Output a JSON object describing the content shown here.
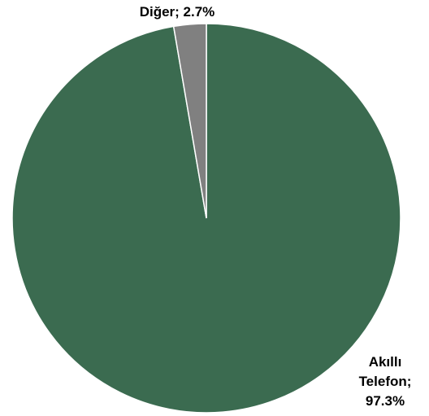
{
  "chart_data": {
    "type": "pie",
    "start_angle": "12 o'clock",
    "direction": "clockwise",
    "slices": [
      {
        "label": "Akıllı Telefon",
        "value": 97.3,
        "value_text": "97.3%",
        "color": "#3b6b50",
        "label_lines": [
          "Akıllı",
          "Telefon;",
          "97.3%"
        ]
      },
      {
        "label": "Diğer",
        "value": 2.7,
        "value_text": "2.7%",
        "color": "#808080",
        "label_lines": [
          "Diğer; 2.7%"
        ]
      }
    ]
  }
}
